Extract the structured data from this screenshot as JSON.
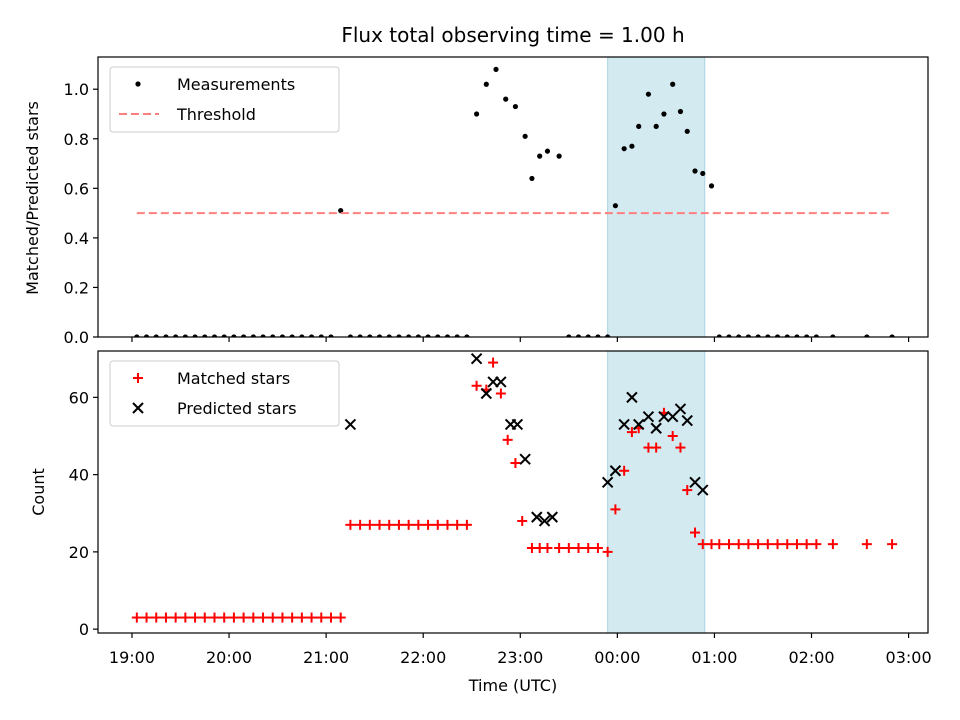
{
  "title": "Flux total observing time = 1.00 h",
  "chart_data": [
    {
      "type": "scatter",
      "panel": "top",
      "ylabel": "Matched/Predicted stars",
      "ylim": [
        0,
        1.13
      ],
      "yticks": [
        0.0,
        0.2,
        0.4,
        0.6,
        0.8,
        1.0
      ],
      "ytick_labels": [
        "0.0",
        "0.2",
        "0.4",
        "0.6",
        "0.8",
        "1.0"
      ],
      "xlim": [
        18.65,
        27.2
      ],
      "grid": false,
      "legend_position": "top-left",
      "highlight_span": [
        23.9,
        24.9
      ],
      "highlight_color": "#d3eaf1",
      "series": [
        {
          "name": "Measurements",
          "kind": "points",
          "color": "#000000",
          "x": [
            19.05,
            19.15,
            19.25,
            19.35,
            19.45,
            19.55,
            19.65,
            19.75,
            19.85,
            19.95,
            20.05,
            20.15,
            20.25,
            20.35,
            20.45,
            20.55,
            20.65,
            20.75,
            20.85,
            20.95,
            21.05,
            21.15,
            21.25,
            21.35,
            21.45,
            21.55,
            21.65,
            21.75,
            21.85,
            21.95,
            22.05,
            22.15,
            22.25,
            22.35,
            22.45,
            22.55,
            22.65,
            22.75,
            22.85,
            22.95,
            23.05,
            23.12,
            23.2,
            23.28,
            23.4,
            23.5,
            23.6,
            23.7,
            23.8,
            23.9,
            23.98,
            24.07,
            24.15,
            24.22,
            24.32,
            24.4,
            24.48,
            24.57,
            24.65,
            24.72,
            24.8,
            24.88,
            24.97,
            25.05,
            25.15,
            25.25,
            25.35,
            25.45,
            25.55,
            25.65,
            25.75,
            25.85,
            25.95,
            26.05,
            26.22,
            26.57,
            26.83
          ],
          "y": [
            0,
            0,
            0,
            0,
            0,
            0,
            0,
            0,
            0,
            0,
            0,
            0,
            0,
            0,
            0,
            0,
            0,
            0,
            0,
            0,
            0,
            0.51,
            0,
            0,
            0,
            0,
            0,
            0,
            0,
            0,
            0,
            0,
            0,
            0,
            0,
            0.9,
            1.02,
            1.08,
            0.96,
            0.93,
            0.81,
            0.64,
            0.73,
            0.75,
            0.73,
            0,
            0,
            0,
            0,
            0,
            0.53,
            0.76,
            0.77,
            0.85,
            0.98,
            0.85,
            0.9,
            1.02,
            0.91,
            0.83,
            0.67,
            0.66,
            0.61,
            0,
            0,
            0,
            0,
            0,
            0,
            0,
            0,
            0,
            0,
            0,
            0,
            0,
            0
          ]
        },
        {
          "name": "Threshold",
          "kind": "dashed-line",
          "color": "#ff7f7f",
          "x": [
            19.05,
            26.83
          ],
          "y": [
            0.5,
            0.5
          ]
        }
      ]
    },
    {
      "type": "scatter",
      "panel": "bottom",
      "ylabel": "Count",
      "xlabel": "Time (UTC)",
      "ylim": [
        -1,
        72
      ],
      "yticks": [
        0,
        20,
        40,
        60
      ],
      "ytick_labels": [
        "0",
        "20",
        "40",
        "60"
      ],
      "xlim": [
        18.65,
        27.2
      ],
      "xticks": [
        19,
        20,
        21,
        22,
        23,
        24,
        25,
        26,
        27
      ],
      "xtick_labels": [
        "19:00",
        "20:00",
        "21:00",
        "22:00",
        "23:00",
        "00:00",
        "01:00",
        "02:00",
        "03:00"
      ],
      "grid": false,
      "legend_position": "top-left",
      "highlight_span": [
        23.9,
        24.9
      ],
      "highlight_color": "#d3eaf1",
      "series": [
        {
          "name": "Matched stars",
          "kind": "plus",
          "color": "#ff0000",
          "x": [
            19.05,
            19.15,
            19.25,
            19.35,
            19.45,
            19.55,
            19.65,
            19.75,
            19.85,
            19.95,
            20.05,
            20.15,
            20.25,
            20.35,
            20.45,
            20.55,
            20.65,
            20.75,
            20.85,
            20.95,
            21.05,
            21.15,
            21.25,
            21.35,
            21.45,
            21.55,
            21.65,
            21.75,
            21.85,
            21.95,
            22.05,
            22.15,
            22.25,
            22.35,
            22.45,
            22.55,
            22.65,
            22.72,
            22.8,
            22.87,
            22.95,
            23.02,
            23.12,
            23.2,
            23.28,
            23.4,
            23.5,
            23.6,
            23.7,
            23.8,
            23.9,
            23.98,
            24.07,
            24.15,
            24.22,
            24.32,
            24.4,
            24.48,
            24.57,
            24.65,
            24.72,
            24.8,
            24.88,
            24.97,
            25.05,
            25.15,
            25.25,
            25.35,
            25.45,
            25.55,
            25.65,
            25.75,
            25.85,
            25.95,
            26.05,
            26.22,
            26.57,
            26.83
          ],
          "y": [
            3,
            3,
            3,
            3,
            3,
            3,
            3,
            3,
            3,
            3,
            3,
            3,
            3,
            3,
            3,
            3,
            3,
            3,
            3,
            3,
            3,
            3,
            27,
            27,
            27,
            27,
            27,
            27,
            27,
            27,
            27,
            27,
            27,
            27,
            27,
            63,
            62,
            69,
            61,
            49,
            43,
            28,
            21,
            21,
            21,
            21,
            21,
            21,
            21,
            21,
            20,
            31,
            41,
            51,
            52,
            47,
            47,
            56,
            50,
            47,
            36,
            25,
            22,
            22,
            22,
            22,
            22,
            22,
            22,
            22,
            22,
            22,
            22,
            22,
            22,
            22,
            22,
            22
          ]
        },
        {
          "name": "Predicted stars",
          "kind": "x",
          "color": "#000000",
          "x": [
            21.25,
            22.55,
            22.65,
            22.72,
            22.8,
            22.9,
            22.97,
            23.05,
            23.17,
            23.25,
            23.33,
            23.9,
            23.98,
            24.07,
            24.15,
            24.22,
            24.32,
            24.4,
            24.48,
            24.57,
            24.65,
            24.72,
            24.8,
            24.88
          ],
          "y": [
            53,
            70,
            61,
            64,
            64,
            53,
            53,
            44,
            29,
            28,
            29,
            38,
            41,
            53,
            60,
            53,
            55,
            52,
            55,
            55,
            57,
            54,
            38,
            36
          ]
        }
      ]
    }
  ]
}
